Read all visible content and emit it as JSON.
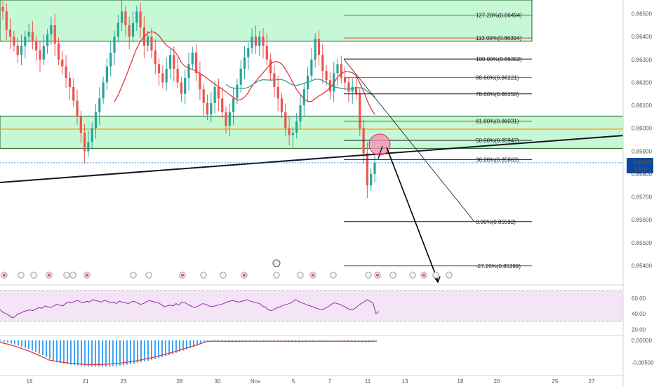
{
  "colors": {
    "bull": "#26a69a",
    "bear": "#ef5350",
    "zone_fill": "#b9f6ca",
    "zone_stroke": "#1b5e20",
    "fib_black": "#131722",
    "fib_red": "#e53935",
    "fib_green": "#2e7d32",
    "ema_red": "#e53935",
    "sma_teal": "#26a69a",
    "rsi_line": "#9c27b0",
    "rsi_band": "#f3e5f5",
    "macd_hist": "#42a5f5",
    "macd_line": "#e53935",
    "price_tag": "#0d47a1",
    "highlight": "#f48fb1"
  },
  "chart_data": {
    "type": "candlestick",
    "symbol_pair_note": "",
    "price_axis": {
      "ylim": [
        0.8534,
        0.8656
      ],
      "ticks": [
        "0.86500",
        "0.86400",
        "0.86300",
        "0.86200",
        "0.86100",
        "0.86000",
        "0.85900",
        "0.85800",
        "0.85700",
        "0.85600",
        "0.85500",
        "0.85400"
      ],
      "current_price": "0.85849",
      "countdown": "36:07"
    },
    "date_axis": [
      "16",
      "21",
      "23",
      "28",
      "30",
      "Nov",
      "5",
      "7",
      "11",
      "13",
      "18",
      "20",
      "25",
      "27"
    ],
    "fib_levels": [
      {
        "label": "127.20%(0.86494)",
        "price": 0.86494,
        "color": "green"
      },
      {
        "label": "113.00%(0.86394)",
        "price": 0.86394,
        "color": "red"
      },
      {
        "label": "100.00%(0.86302)",
        "price": 0.86302,
        "color": "black"
      },
      {
        "label": "88.60%(0.86221)",
        "price": 0.86221,
        "color": "red"
      },
      {
        "label": "78.60%(0.86150)",
        "price": 0.8615,
        "color": "black"
      },
      {
        "label": "61.80%(0.86031)",
        "price": 0.86031,
        "color": "green"
      },
      {
        "label": "50.00%(0.85947)",
        "price": 0.85947,
        "color": "black"
      },
      {
        "label": "38.20%(0.85863)",
        "price": 0.85863,
        "color": "black"
      },
      {
        "label": "0.00%(0.85592)",
        "price": 0.85592,
        "color": "black"
      },
      {
        "label": "-27.20%(0.85399)",
        "price": 0.85399,
        "color": "green"
      }
    ],
    "zones": [
      {
        "name": "upper-supply-zone",
        "top": 0.8656,
        "bottom": 0.8638
      },
      {
        "name": "lower-demand-zone",
        "top": 0.86053,
        "bottom": 0.85912
      }
    ],
    "rsi": {
      "ticks": [
        "60.00",
        "40.00",
        "20.00"
      ],
      "values": [
        45,
        42,
        40,
        38,
        35,
        36,
        40,
        41,
        43,
        44,
        45,
        44,
        46,
        48,
        47,
        50,
        49,
        48,
        50,
        52,
        51,
        50,
        53,
        55,
        54,
        56,
        57,
        55,
        54,
        56,
        55,
        58,
        57,
        56,
        55,
        57,
        56,
        54,
        55,
        53,
        56,
        55,
        54,
        53,
        55,
        56,
        54,
        52,
        53,
        55,
        57,
        56,
        55,
        54,
        52,
        49,
        50,
        51,
        50,
        53,
        51,
        55,
        54,
        52,
        50,
        48,
        49,
        51,
        53,
        52,
        50,
        49,
        50,
        51,
        52,
        53,
        55,
        56,
        57,
        56,
        55,
        56,
        57,
        58,
        56,
        55,
        54,
        53,
        50,
        48,
        45,
        44,
        46,
        48,
        49,
        51,
        52,
        53,
        55,
        58,
        56,
        54,
        53,
        51,
        50,
        49,
        47,
        46,
        45,
        47,
        49,
        52,
        54,
        53,
        52,
        50,
        48,
        46,
        45,
        47,
        50,
        53,
        55,
        58,
        56,
        54,
        40,
        43
      ]
    },
    "macd": {
      "ticks": [
        "0.00000",
        "-0.00500"
      ]
    }
  }
}
